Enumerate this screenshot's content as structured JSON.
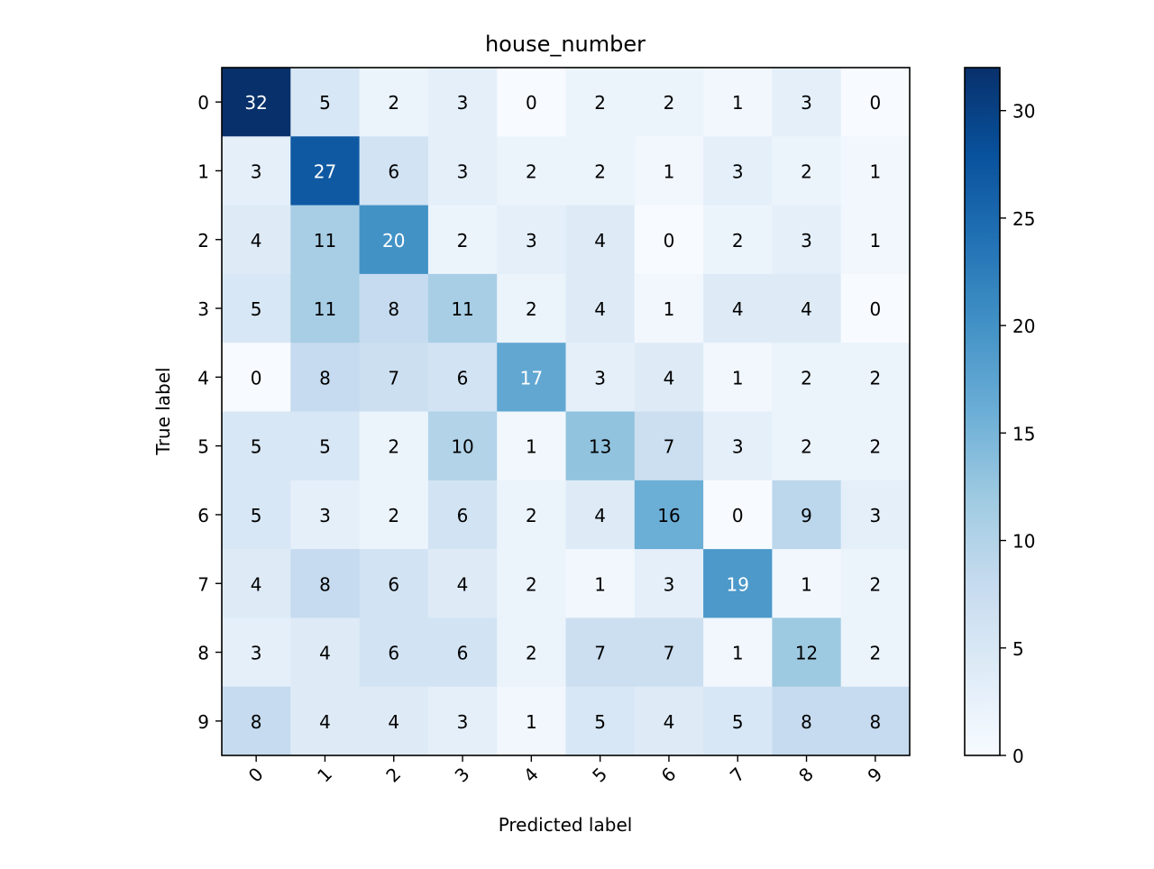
{
  "chart_data": {
    "type": "heatmap",
    "title": "house_number",
    "xlabel": "Predicted label",
    "ylabel": "True label",
    "x_categories": [
      "0",
      "1",
      "2",
      "3",
      "4",
      "5",
      "6",
      "7",
      "8",
      "9"
    ],
    "y_categories": [
      "0",
      "1",
      "2",
      "3",
      "4",
      "5",
      "6",
      "7",
      "8",
      "9"
    ],
    "values": [
      [
        32,
        5,
        2,
        3,
        0,
        2,
        2,
        1,
        3,
        0
      ],
      [
        3,
        27,
        6,
        3,
        2,
        2,
        1,
        3,
        2,
        1
      ],
      [
        4,
        11,
        20,
        2,
        3,
        4,
        0,
        2,
        3,
        1
      ],
      [
        5,
        11,
        8,
        11,
        2,
        4,
        1,
        4,
        4,
        0
      ],
      [
        0,
        8,
        7,
        6,
        17,
        3,
        4,
        1,
        2,
        2
      ],
      [
        5,
        5,
        2,
        10,
        1,
        13,
        7,
        3,
        2,
        2
      ],
      [
        5,
        3,
        2,
        6,
        2,
        4,
        16,
        0,
        9,
        3
      ],
      [
        4,
        8,
        6,
        4,
        2,
        1,
        3,
        19,
        1,
        2
      ],
      [
        3,
        4,
        6,
        6,
        2,
        7,
        7,
        1,
        12,
        2
      ],
      [
        8,
        4,
        4,
        3,
        1,
        5,
        4,
        5,
        8,
        8
      ]
    ],
    "colorbar": {
      "range": [
        0,
        32
      ],
      "ticks": [
        0,
        5,
        10,
        15,
        20,
        25,
        30
      ],
      "colormap": "Blues"
    },
    "x_tick_rotation_deg": 45,
    "text_color_light": "#ffffff",
    "text_color_dark": "#000000"
  }
}
